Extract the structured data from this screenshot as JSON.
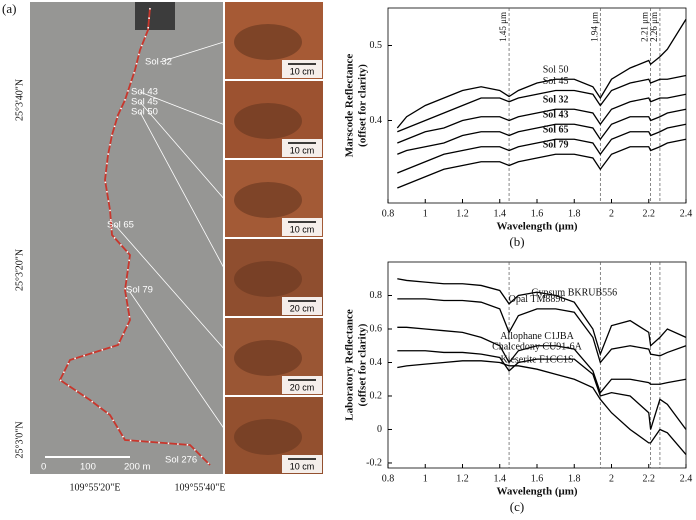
{
  "map": {
    "panel_label": "(a)",
    "lat_labels": [
      "25°3'40\"N",
      "25°3'20\"N",
      "25°3'0\"N"
    ],
    "lon_labels": [
      "109°55'20\"E",
      "109°55'40\"E"
    ],
    "sol_labels": [
      "Sol 32",
      "Sol 43",
      "Sol 45",
      "Sol 50",
      "Sol 65",
      "Sol 79",
      "Sol 276"
    ],
    "scale_labels": [
      "0",
      "100",
      "200 m"
    ],
    "photo_scales": [
      "10 cm",
      "10 cm",
      "10 cm",
      "20 cm",
      "20 cm",
      "10 cm"
    ]
  },
  "chart_data": [
    {
      "type": "line",
      "panel_label": "(b)",
      "xlabel": "Wavelength (μm)",
      "ylabel": [
        "Marscode Reflectance",
        "(offset for clarity)"
      ],
      "xlim": [
        0.8,
        2.4
      ],
      "xticks": [
        0.8,
        1,
        1.2,
        1.4,
        1.6,
        1.8,
        2,
        2.2,
        2.4
      ],
      "ylim": [
        0.29,
        0.55
      ],
      "yticks": [
        0.4,
        0.5
      ],
      "vlines": [
        {
          "value": 1.45,
          "label": "1.45 μm"
        },
        {
          "value": 1.94,
          "label": "1.94 μm"
        },
        {
          "value": 2.21,
          "label": "2.21 μm"
        },
        {
          "value": 2.26,
          "label": "2.26 μm"
        }
      ],
      "x": [
        0.85,
        0.9,
        1.0,
        1.1,
        1.2,
        1.3,
        1.4,
        1.45,
        1.5,
        1.6,
        1.7,
        1.8,
        1.9,
        1.94,
        2.0,
        2.1,
        2.2,
        2.21,
        2.26,
        2.3,
        2.4
      ],
      "series": [
        {
          "name": "Sol 50",
          "color": "#000000",
          "bold": false,
          "values": [
            0.39,
            0.405,
            0.42,
            0.43,
            0.44,
            0.445,
            0.44,
            0.432,
            0.44,
            0.45,
            0.455,
            0.455,
            0.445,
            0.43,
            0.455,
            0.47,
            0.48,
            0.475,
            0.485,
            0.495,
            0.535
          ]
        },
        {
          "name": "Sol 45",
          "color": "#000000",
          "bold": false,
          "values": [
            0.385,
            0.39,
            0.4,
            0.41,
            0.42,
            0.43,
            0.43,
            0.425,
            0.43,
            0.435,
            0.44,
            0.44,
            0.435,
            0.42,
            0.44,
            0.45,
            0.455,
            0.45,
            0.455,
            0.455,
            0.46
          ]
        },
        {
          "name": "Sol 32",
          "color": "#000000",
          "bold": true,
          "values": [
            0.37,
            0.375,
            0.385,
            0.39,
            0.4,
            0.405,
            0.405,
            0.4,
            0.405,
            0.41,
            0.415,
            0.415,
            0.41,
            0.395,
            0.415,
            0.425,
            0.43,
            0.425,
            0.43,
            0.43,
            0.435
          ]
        },
        {
          "name": "Sol 43",
          "color": "#000000",
          "bold": true,
          "values": [
            0.355,
            0.36,
            0.365,
            0.37,
            0.38,
            0.385,
            0.385,
            0.38,
            0.385,
            0.39,
            0.395,
            0.395,
            0.39,
            0.375,
            0.395,
            0.405,
            0.405,
            0.4,
            0.405,
            0.41,
            0.415
          ]
        },
        {
          "name": "Sol 65",
          "color": "#000000",
          "bold": true,
          "values": [
            0.33,
            0.335,
            0.345,
            0.355,
            0.36,
            0.365,
            0.365,
            0.36,
            0.365,
            0.37,
            0.375,
            0.375,
            0.37,
            0.355,
            0.375,
            0.385,
            0.385,
            0.38,
            0.385,
            0.39,
            0.395
          ]
        },
        {
          "name": "Sol 79",
          "color": "#000000",
          "bold": true,
          "values": [
            0.31,
            0.315,
            0.325,
            0.335,
            0.34,
            0.345,
            0.345,
            0.34,
            0.345,
            0.35,
            0.355,
            0.355,
            0.35,
            0.335,
            0.355,
            0.365,
            0.365,
            0.36,
            0.365,
            0.37,
            0.375
          ]
        }
      ]
    },
    {
      "type": "line",
      "panel_label": "(c)",
      "xlabel": "Wavelength (μm)",
      "ylabel": [
        "Laboratory Reflectance",
        "(offset for clarity)"
      ],
      "xlim": [
        0.8,
        2.4
      ],
      "xticks": [
        0.8,
        1,
        1.2,
        1.4,
        1.6,
        1.8,
        2,
        2.2,
        2.4
      ],
      "ylim": [
        -0.23,
        1.0
      ],
      "yticks": [
        -0.2,
        0,
        0.2,
        0.4,
        0.6,
        0.8
      ],
      "vlines": [
        1.45,
        1.94,
        2.21,
        2.26
      ],
      "x": [
        0.85,
        0.9,
        1.0,
        1.1,
        1.2,
        1.3,
        1.4,
        1.45,
        1.5,
        1.6,
        1.7,
        1.8,
        1.9,
        1.94,
        2.0,
        2.1,
        2.2,
        2.21,
        2.26,
        2.3,
        2.4
      ],
      "series": [
        {
          "name": "Gypsum BKRUB556",
          "color": "#000000",
          "values": [
            0.9,
            0.89,
            0.88,
            0.87,
            0.87,
            0.86,
            0.83,
            0.75,
            0.8,
            0.82,
            0.8,
            0.76,
            0.6,
            0.45,
            0.62,
            0.65,
            0.58,
            0.5,
            0.55,
            0.6,
            0.55
          ]
        },
        {
          "name": "Opal TM8896",
          "color": "#000000",
          "values": [
            0.78,
            0.78,
            0.78,
            0.77,
            0.77,
            0.76,
            0.72,
            0.58,
            0.68,
            0.72,
            0.72,
            0.7,
            0.55,
            0.4,
            0.48,
            0.5,
            0.48,
            0.45,
            0.44,
            0.46,
            0.5
          ]
        },
        {
          "name": "Allophane C1JBA",
          "color": "#000000",
          "values": [
            0.61,
            0.61,
            0.6,
            0.59,
            0.58,
            0.55,
            0.5,
            0.4,
            0.47,
            0.5,
            0.5,
            0.48,
            0.35,
            0.22,
            0.3,
            0.3,
            0.28,
            0.27,
            0.27,
            0.28,
            0.3
          ]
        },
        {
          "name": "Chalcedony CU91-6A",
          "color": "#000000",
          "values": [
            0.47,
            0.47,
            0.47,
            0.46,
            0.46,
            0.45,
            0.43,
            0.35,
            0.4,
            0.42,
            0.42,
            0.42,
            0.33,
            0.2,
            0.22,
            0.2,
            0.1,
            0.0,
            0.18,
            0.15,
            0.0
          ]
        },
        {
          "name": "Kieserite F1CC1S",
          "color": "#000000",
          "values": [
            0.37,
            0.38,
            0.39,
            0.4,
            0.41,
            0.41,
            0.4,
            0.38,
            0.38,
            0.36,
            0.33,
            0.3,
            0.25,
            0.18,
            0.1,
            0.0,
            -0.08,
            -0.08,
            0.0,
            -0.02,
            -0.15
          ]
        }
      ]
    }
  ]
}
